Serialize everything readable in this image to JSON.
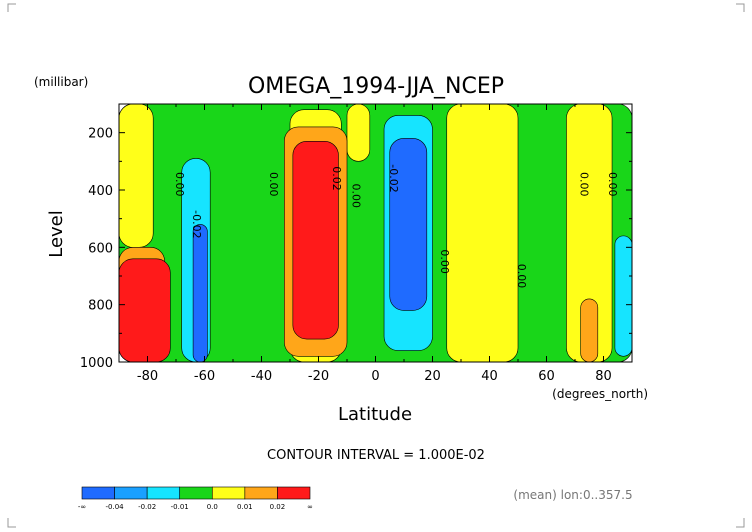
{
  "chart_data": {
    "type": "heatmap",
    "title": "OMEGA_1994-JJA_NCEP",
    "xlabel": "Latitude",
    "xunits": "(degrees_north)",
    "ylabel": "Level",
    "yunits": "(millibar)",
    "xlim": [
      -90,
      90
    ],
    "ylim": [
      1000,
      100
    ],
    "xticks": [
      -80,
      -60,
      -40,
      -20,
      0,
      20,
      40,
      60,
      80
    ],
    "yticks": [
      200,
      400,
      600,
      800,
      1000
    ],
    "xtick_labels": [
      "-80",
      "-60",
      "-40",
      "-20",
      "0",
      "20",
      "40",
      "60",
      "80"
    ],
    "ytick_labels": [
      "200",
      "400",
      "600",
      "800",
      "1000"
    ],
    "contour_interval_text": "CONTOUR INTERVAL = 1.000E-02",
    "mean_text": "(mean) lon:0..357.5",
    "colorbar": {
      "colors": [
        "#1f6bff",
        "#1aa0ff",
        "#16e4ff",
        "#19d619",
        "#ffff19",
        "#ffa619",
        "#ff1a1a"
      ],
      "labels": [
        "-∞",
        "-0.04",
        "-0.02",
        "-0.01",
        "0.0",
        "0.01",
        "0.02",
        "∞"
      ]
    },
    "contour_labels": [
      {
        "lat": -70,
        "lev": 380,
        "text": "0.00"
      },
      {
        "lat": -64,
        "lev": 520,
        "text": "-0.02"
      },
      {
        "lat": -37,
        "lev": 380,
        "text": "0.00"
      },
      {
        "lat": -15,
        "lev": 360,
        "text": "0.02"
      },
      {
        "lat": -8,
        "lev": 420,
        "text": "0.00"
      },
      {
        "lat": 5,
        "lev": 360,
        "text": "-0.02"
      },
      {
        "lat": 23,
        "lev": 650,
        "text": "0.00"
      },
      {
        "lat": 50,
        "lev": 700,
        "text": "0.00"
      },
      {
        "lat": 72,
        "lev": 380,
        "text": "0.00"
      },
      {
        "lat": 82,
        "lev": 380,
        "text": "0.00"
      }
    ],
    "regions": [
      {
        "level_class": "green",
        "lat_range": [
          -90,
          90
        ],
        "lev_range": [
          100,
          1000
        ]
      },
      {
        "level_class": "yellow",
        "lat_range": [
          -90,
          -78
        ],
        "lev_range": [
          100,
          600
        ]
      },
      {
        "level_class": "yellow",
        "lat_range": [
          -30,
          -12
        ],
        "lev_range": [
          120,
          1000
        ]
      },
      {
        "level_class": "yellow",
        "lat_range": [
          -10,
          -2
        ],
        "lev_range": [
          100,
          300
        ]
      },
      {
        "level_class": "yellow",
        "lat_range": [
          25,
          50
        ],
        "lev_range": [
          100,
          1000
        ]
      },
      {
        "level_class": "yellow",
        "lat_range": [
          67,
          83
        ],
        "lev_range": [
          100,
          1000
        ]
      },
      {
        "level_class": "orange",
        "lat_range": [
          -32,
          -10
        ],
        "lev_range": [
          180,
          980
        ]
      },
      {
        "level_class": "orange",
        "lat_range": [
          -92,
          -74
        ],
        "lev_range": [
          600,
          1000
        ]
      },
      {
        "level_class": "orange",
        "lat_range": [
          72,
          78
        ],
        "lev_range": [
          780,
          1000
        ]
      },
      {
        "level_class": "red",
        "lat_range": [
          -29,
          -13
        ],
        "lev_range": [
          230,
          920
        ]
      },
      {
        "level_class": "red",
        "lat_range": [
          -92,
          -72
        ],
        "lev_range": [
          640,
          1000
        ]
      },
      {
        "level_class": "cyan",
        "lat_range": [
          -68,
          -58
        ],
        "lev_range": [
          290,
          1000
        ]
      },
      {
        "level_class": "cyan",
        "lat_range": [
          3,
          20
        ],
        "lev_range": [
          140,
          960
        ]
      },
      {
        "level_class": "cyan",
        "lat_range": [
          84,
          90
        ],
        "lev_range": [
          560,
          980
        ]
      },
      {
        "level_class": "blue",
        "lat_range": [
          -64,
          -59
        ],
        "lev_range": [
          520,
          1000
        ]
      },
      {
        "level_class": "blue",
        "lat_range": [
          5,
          18
        ],
        "lev_range": [
          220,
          820
        ]
      }
    ]
  }
}
